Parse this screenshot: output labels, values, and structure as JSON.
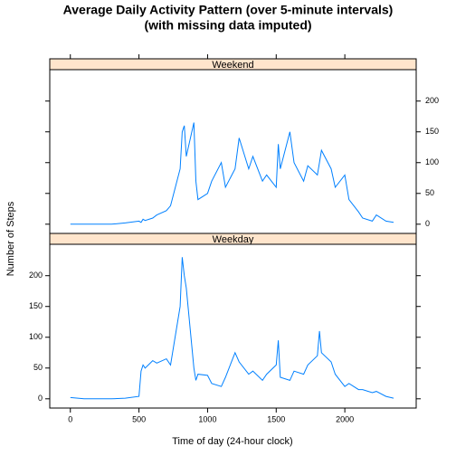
{
  "chart_data": {
    "type": "line",
    "title": "Average Daily Activity Pattern (over 5-minute intervals)",
    "subtitle": "(with missing data imputed)",
    "xlabel": "Time of day (24-hour clock)",
    "ylabel": "Number of Steps",
    "xlim": [
      -150,
      2520
    ],
    "ylim": [
      -15,
      251
    ],
    "xticks": [
      0,
      500,
      1000,
      1500,
      2000
    ],
    "yticks": [
      0,
      50,
      100,
      150,
      200
    ],
    "x": [
      0,
      100,
      200,
      300,
      400,
      500,
      515,
      530,
      545,
      600,
      630,
      700,
      730,
      800,
      815,
      830,
      845,
      900,
      915,
      930,
      1000,
      1030,
      1100,
      1130,
      1200,
      1230,
      1300,
      1330,
      1400,
      1430,
      1500,
      1515,
      1530,
      1600,
      1630,
      1700,
      1730,
      1800,
      1815,
      1830,
      1900,
      1930,
      2000,
      2030,
      2100,
      2130,
      2200,
      2230,
      2300,
      2355
    ],
    "series": [
      {
        "name": "Weekend",
        "color": "#0080ff",
        "values": [
          0,
          0,
          0,
          0,
          2,
          5,
          3,
          8,
          6,
          10,
          15,
          22,
          30,
          90,
          150,
          160,
          110,
          165,
          70,
          40,
          50,
          70,
          100,
          60,
          90,
          140,
          90,
          110,
          70,
          80,
          60,
          130,
          90,
          150,
          100,
          70,
          95,
          80,
          100,
          120,
          90,
          60,
          80,
          40,
          20,
          10,
          5,
          15,
          5,
          3
        ]
      },
      {
        "name": "Weekday",
        "color": "#0080ff",
        "values": [
          2,
          0,
          0,
          0,
          1,
          4,
          45,
          55,
          50,
          62,
          58,
          65,
          55,
          150,
          230,
          200,
          180,
          50,
          30,
          40,
          38,
          25,
          20,
          35,
          75,
          60,
          40,
          45,
          30,
          40,
          55,
          95,
          35,
          30,
          45,
          40,
          55,
          70,
          110,
          75,
          60,
          40,
          20,
          25,
          15,
          15,
          10,
          12,
          4,
          1
        ]
      }
    ]
  }
}
